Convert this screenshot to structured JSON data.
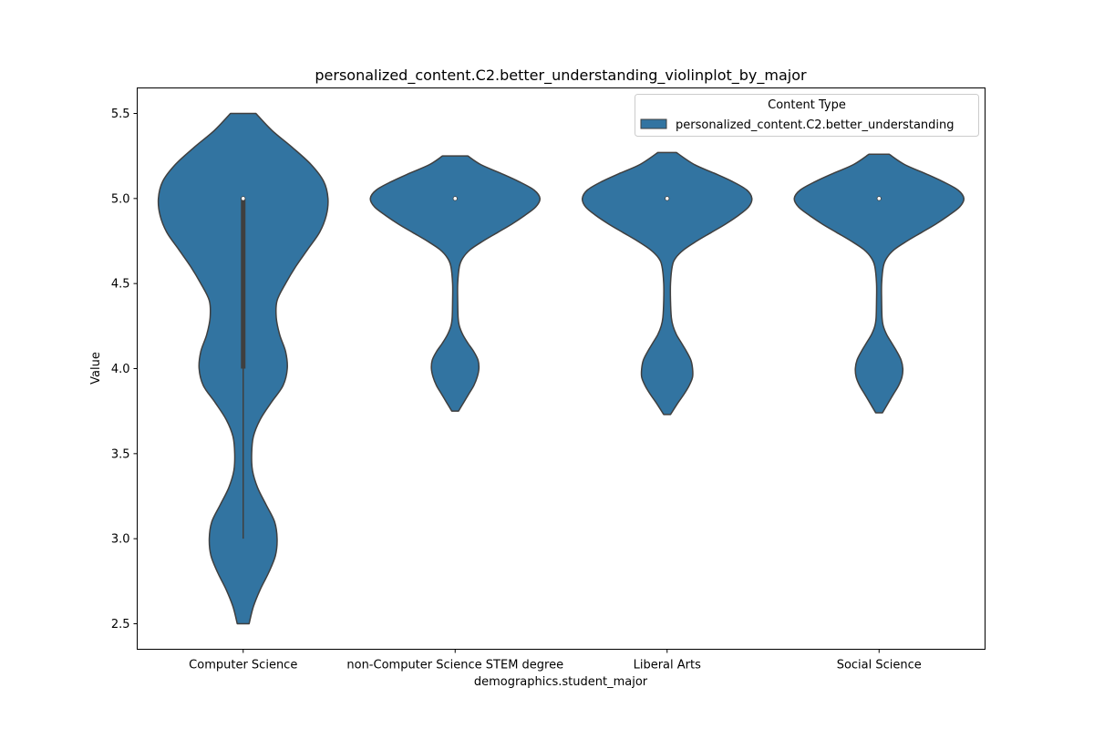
{
  "chart_data": {
    "type": "violin",
    "title": "personalized_content.C2.better_understanding_violinplot_by_major",
    "xlabel": "demographics.student_major",
    "ylabel": "Value",
    "ylim": [
      2.35,
      5.65
    ],
    "yticks": [
      "2.5",
      "3.0",
      "3.5",
      "4.0",
      "4.5",
      "5.0",
      "5.5"
    ],
    "grid": false,
    "categories": [
      "Computer Science",
      "non-Computer Science STEM degree",
      "Liberal Arts",
      "Social Science"
    ],
    "legend": {
      "title": "Content Type",
      "placement": "top-right",
      "entries": [
        "personalized_content.C2.better_understanding"
      ]
    },
    "colors": {
      "fill": "#3274a1",
      "edge": "#3f3f3f",
      "median": "#ffffff"
    },
    "series": [
      {
        "name": "personalized_content.C2.better_understanding",
        "groups": [
          {
            "category": "Computer Science",
            "median": 5.0,
            "q1": 4.0,
            "q3": 5.0,
            "whisker_low": 3.0,
            "whisker_high": 5.0,
            "density": [
              [
                2.5,
                0.07
              ],
              [
                2.6,
                0.12
              ],
              [
                2.7,
                0.2
              ],
              [
                2.8,
                0.3
              ],
              [
                2.9,
                0.38
              ],
              [
                3.0,
                0.4
              ],
              [
                3.1,
                0.37
              ],
              [
                3.2,
                0.27
              ],
              [
                3.3,
                0.17
              ],
              [
                3.4,
                0.11
              ],
              [
                3.5,
                0.1
              ],
              [
                3.6,
                0.12
              ],
              [
                3.7,
                0.2
              ],
              [
                3.8,
                0.33
              ],
              [
                3.9,
                0.47
              ],
              [
                4.0,
                0.52
              ],
              [
                4.1,
                0.5
              ],
              [
                4.2,
                0.43
              ],
              [
                4.3,
                0.39
              ],
              [
                4.4,
                0.4
              ],
              [
                4.5,
                0.5
              ],
              [
                4.6,
                0.62
              ],
              [
                4.7,
                0.76
              ],
              [
                4.8,
                0.9
              ],
              [
                4.9,
                0.98
              ],
              [
                5.0,
                1.0
              ],
              [
                5.1,
                0.95
              ],
              [
                5.2,
                0.8
              ],
              [
                5.3,
                0.58
              ],
              [
                5.4,
                0.34
              ],
              [
                5.5,
                0.15
              ]
            ]
          },
          {
            "category": "non-Computer Science STEM degree",
            "median": 5.0,
            "q1": 5.0,
            "q3": 5.0,
            "whisker_low": 5.0,
            "whisker_high": 5.0,
            "density": [
              [
                3.75,
                0.04
              ],
              [
                3.8,
                0.1
              ],
              [
                3.85,
                0.16
              ],
              [
                3.9,
                0.22
              ],
              [
                3.95,
                0.26
              ],
              [
                4.0,
                0.28
              ],
              [
                4.05,
                0.27
              ],
              [
                4.1,
                0.22
              ],
              [
                4.15,
                0.15
              ],
              [
                4.2,
                0.09
              ],
              [
                4.25,
                0.05
              ],
              [
                4.3,
                0.035
              ],
              [
                4.4,
                0.03
              ],
              [
                4.5,
                0.03
              ],
              [
                4.6,
                0.05
              ],
              [
                4.65,
                0.09
              ],
              [
                4.7,
                0.18
              ],
              [
                4.75,
                0.33
              ],
              [
                4.8,
                0.5
              ],
              [
                4.85,
                0.67
              ],
              [
                4.9,
                0.82
              ],
              [
                4.95,
                0.95
              ],
              [
                5.0,
                1.0
              ],
              [
                5.05,
                0.93
              ],
              [
                5.1,
                0.75
              ],
              [
                5.15,
                0.53
              ],
              [
                5.2,
                0.3
              ],
              [
                5.25,
                0.15
              ]
            ]
          },
          {
            "category": "Liberal Arts",
            "median": 5.0,
            "q1": 5.0,
            "q3": 5.0,
            "whisker_low": 5.0,
            "whisker_high": 5.0,
            "density": [
              [
                3.73,
                0.04
              ],
              [
                3.8,
                0.13
              ],
              [
                3.85,
                0.2
              ],
              [
                3.9,
                0.26
              ],
              [
                3.95,
                0.3
              ],
              [
                4.0,
                0.3
              ],
              [
                4.05,
                0.28
              ],
              [
                4.1,
                0.23
              ],
              [
                4.15,
                0.17
              ],
              [
                4.2,
                0.11
              ],
              [
                4.25,
                0.07
              ],
              [
                4.3,
                0.05
              ],
              [
                4.4,
                0.04
              ],
              [
                4.5,
                0.04
              ],
              [
                4.6,
                0.06
              ],
              [
                4.65,
                0.1
              ],
              [
                4.7,
                0.2
              ],
              [
                4.75,
                0.35
              ],
              [
                4.8,
                0.52
              ],
              [
                4.85,
                0.69
              ],
              [
                4.9,
                0.84
              ],
              [
                4.95,
                0.96
              ],
              [
                5.0,
                1.0
              ],
              [
                5.05,
                0.94
              ],
              [
                5.1,
                0.77
              ],
              [
                5.15,
                0.55
              ],
              [
                5.2,
                0.32
              ],
              [
                5.27,
                0.11
              ]
            ]
          },
          {
            "category": "Social Science",
            "median": 5.0,
            "q1": 5.0,
            "q3": 5.0,
            "whisker_low": 5.0,
            "whisker_high": 5.0,
            "density": [
              [
                3.74,
                0.04
              ],
              [
                3.8,
                0.11
              ],
              [
                3.85,
                0.17
              ],
              [
                3.9,
                0.23
              ],
              [
                3.95,
                0.27
              ],
              [
                4.0,
                0.28
              ],
              [
                4.05,
                0.26
              ],
              [
                4.1,
                0.21
              ],
              [
                4.15,
                0.15
              ],
              [
                4.2,
                0.09
              ],
              [
                4.25,
                0.05
              ],
              [
                4.3,
                0.035
              ],
              [
                4.4,
                0.03
              ],
              [
                4.5,
                0.03
              ],
              [
                4.6,
                0.05
              ],
              [
                4.65,
                0.09
              ],
              [
                4.7,
                0.18
              ],
              [
                4.75,
                0.33
              ],
              [
                4.8,
                0.5
              ],
              [
                4.85,
                0.67
              ],
              [
                4.9,
                0.82
              ],
              [
                4.95,
                0.95
              ],
              [
                5.0,
                1.0
              ],
              [
                5.05,
                0.93
              ],
              [
                5.1,
                0.75
              ],
              [
                5.15,
                0.53
              ],
              [
                5.2,
                0.3
              ],
              [
                5.26,
                0.12
              ]
            ]
          }
        ]
      }
    ]
  }
}
